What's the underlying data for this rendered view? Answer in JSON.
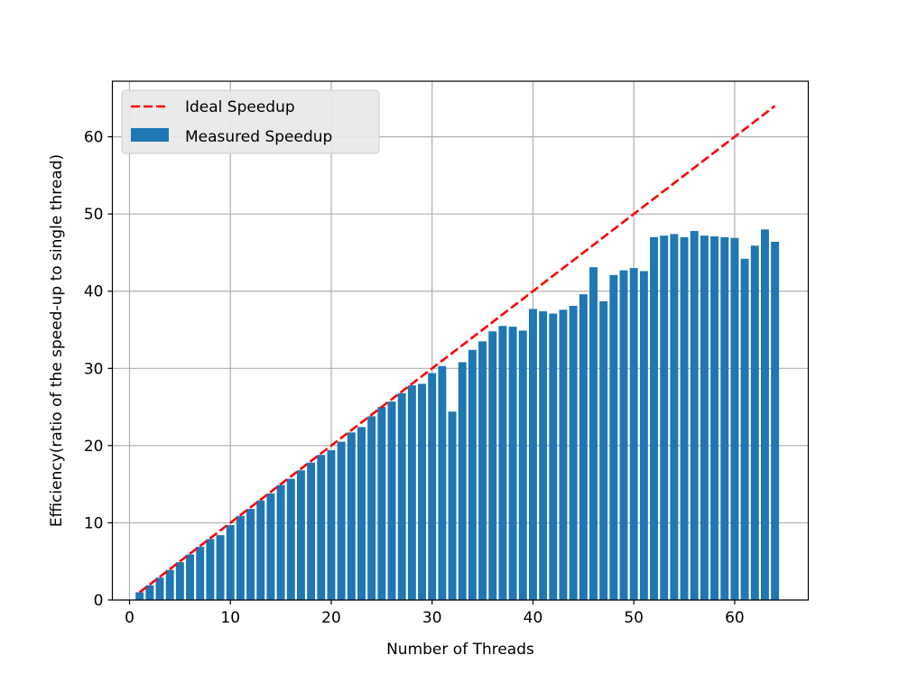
{
  "chart_data": {
    "type": "bar",
    "title": "",
    "xlabel": "Number of Threads",
    "ylabel": "Efficiency(ratio of the speed-up to single thread)",
    "xlim": [
      -1.7,
      67.3
    ],
    "ylim": [
      0,
      67.2
    ],
    "xticks": [
      0,
      10,
      20,
      30,
      40,
      50,
      60
    ],
    "yticks": [
      0,
      10,
      20,
      30,
      40,
      50,
      60
    ],
    "grid": true,
    "legend_position": "top-left",
    "series": [
      {
        "name": "Ideal Speedup",
        "kind": "line",
        "style": "dashed",
        "color": "#ff0000",
        "x": [
          1,
          64
        ],
        "y": [
          1,
          64
        ]
      },
      {
        "name": "Measured Speedup",
        "kind": "bar",
        "color": "#1f77b4",
        "bar_width": 0.8,
        "x": [
          1,
          2,
          3,
          4,
          5,
          6,
          7,
          8,
          9,
          10,
          11,
          12,
          13,
          14,
          15,
          16,
          17,
          18,
          19,
          20,
          21,
          22,
          23,
          24,
          25,
          26,
          27,
          28,
          29,
          30,
          31,
          32,
          33,
          34,
          35,
          36,
          37,
          38,
          39,
          40,
          41,
          42,
          43,
          44,
          45,
          46,
          47,
          48,
          49,
          50,
          51,
          52,
          53,
          54,
          55,
          56,
          57,
          58,
          59,
          60,
          61,
          62,
          63,
          64
        ],
        "values": [
          1.0,
          1.9,
          2.9,
          3.9,
          4.9,
          5.9,
          6.9,
          7.9,
          8.4,
          9.7,
          10.9,
          11.8,
          12.9,
          13.8,
          14.9,
          15.7,
          16.8,
          17.8,
          18.8,
          19.4,
          20.5,
          21.7,
          22.4,
          23.8,
          25.0,
          25.7,
          26.8,
          27.8,
          28.0,
          29.4,
          30.3,
          24.4,
          30.8,
          32.4,
          33.5,
          34.8,
          35.5,
          35.4,
          34.9,
          37.7,
          37.4,
          37.1,
          37.6,
          38.1,
          39.6,
          43.1,
          38.7,
          42.1,
          42.7,
          43.0,
          42.6,
          47.0,
          47.2,
          47.4,
          47.0,
          47.8,
          47.2,
          47.1,
          47.0,
          46.9,
          44.2,
          45.9,
          48.0,
          46.4
        ]
      }
    ]
  }
}
